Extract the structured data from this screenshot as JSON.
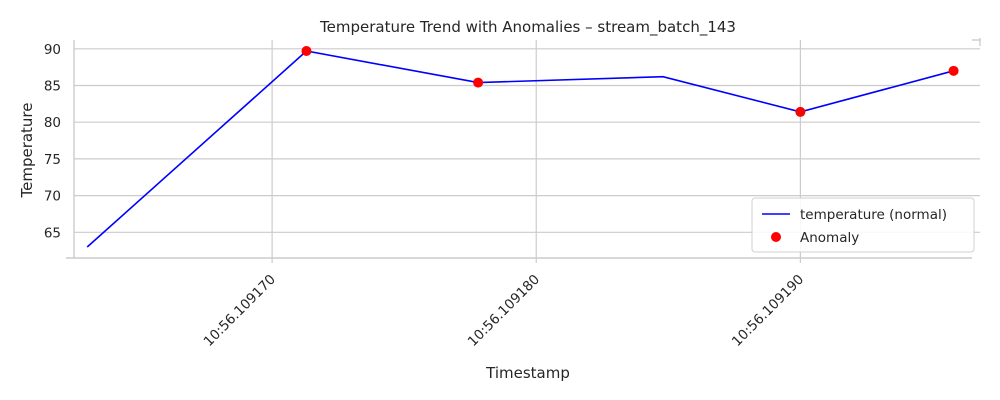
{
  "chart_data": {
    "type": "line",
    "title": "Temperature Trend with Anomalies – stream_batch_143",
    "xlabel": "Timestamp",
    "ylabel": "Temperature",
    "x_unit": "seconds within minute 10",
    "x": [
      56.109163,
      56.1091713,
      56.1091778,
      56.1091848,
      56.10919,
      56.1091958
    ],
    "xlim": [
      56.1091625,
      56.1091968
    ],
    "xticks": [
      56.10917,
      56.10918,
      56.10919
    ],
    "xtick_labels": [
      "10:56.109170",
      "10:56.109180",
      "10:56.109190"
    ],
    "ylim": [
      61.5,
      91.2
    ],
    "yticks": [
      65,
      70,
      75,
      80,
      85,
      90
    ],
    "yticks_labels": [
      "65",
      "70",
      "75",
      "80",
      "85",
      "90"
    ],
    "grid": true,
    "series": [
      {
        "name": "temperature (normal)",
        "kind": "line",
        "color": "#0000ff",
        "values": [
          63.0,
          89.7,
          85.4,
          86.2,
          81.4,
          87.0
        ]
      },
      {
        "name": "Anomaly",
        "kind": "scatter",
        "color": "#ff0000",
        "points": [
          {
            "x": 56.1091713,
            "y": 89.7
          },
          {
            "x": 56.1091778,
            "y": 85.4
          },
          {
            "x": 56.10919,
            "y": 81.4
          },
          {
            "x": 56.1091958,
            "y": 87.0
          }
        ]
      }
    ],
    "legend": {
      "placement": "lower-right",
      "entries": [
        "temperature (normal)",
        "Anomaly"
      ]
    }
  }
}
